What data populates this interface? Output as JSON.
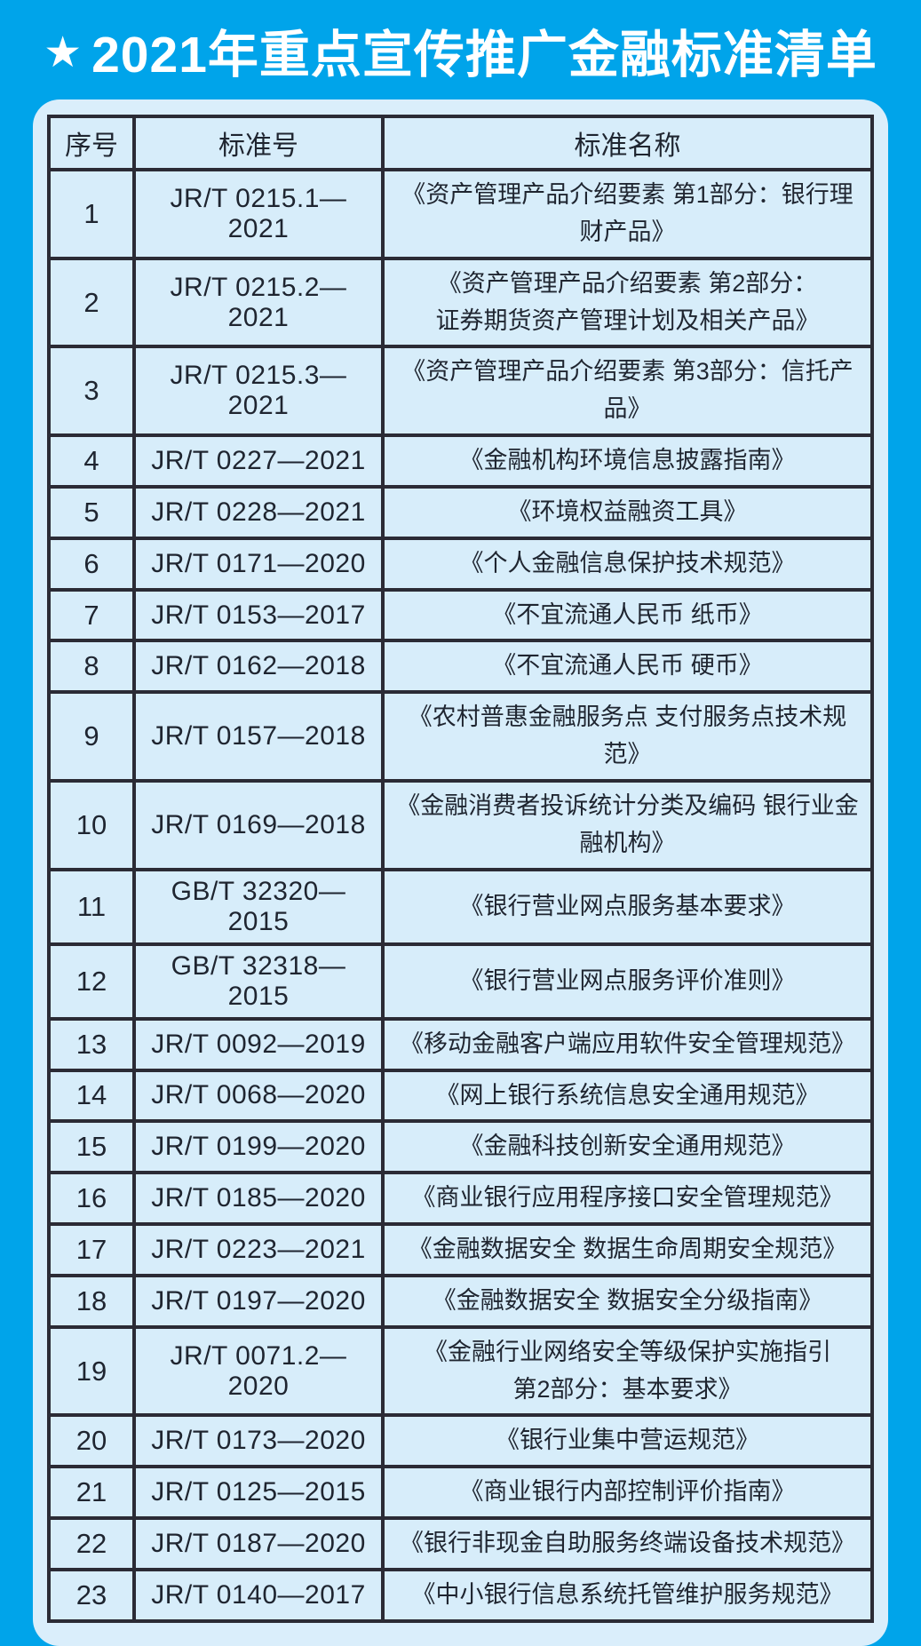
{
  "header": {
    "star_icon": "★",
    "title": "2021年重点宣传推广金融标准清单"
  },
  "colors": {
    "background": "#00a4ea",
    "panel": "#daeefb",
    "cell": "#d7edfa",
    "border": "#2b2b35",
    "cell_text": "#1f2530",
    "title_text": "#ffffff"
  },
  "table": {
    "headers": [
      "序号",
      "标准号",
      "标准名称"
    ],
    "rows": [
      {
        "no": "1",
        "code": "JR/T 0215.1—2021",
        "name": "《资产管理产品介绍要素 第1部分：银行理财产品》"
      },
      {
        "no": "2",
        "code": "JR/T 0215.2—2021",
        "name": "《资产管理产品介绍要素 第2部分：\n证券期货资产管理计划及相关产品》"
      },
      {
        "no": "3",
        "code": "JR/T 0215.3—2021",
        "name": "《资产管理产品介绍要素 第3部分：信托产品》"
      },
      {
        "no": "4",
        "code": "JR/T 0227—2021",
        "name": "《金融机构环境信息披露指南》"
      },
      {
        "no": "5",
        "code": "JR/T 0228—2021",
        "name": "《环境权益融资工具》"
      },
      {
        "no": "6",
        "code": "JR/T 0171—2020",
        "name": "《个人金融信息保护技术规范》"
      },
      {
        "no": "7",
        "code": "JR/T 0153—2017",
        "name": "《不宜流通人民币 纸币》"
      },
      {
        "no": "8",
        "code": "JR/T 0162—2018",
        "name": "《不宜流通人民币 硬币》"
      },
      {
        "no": "9",
        "code": "JR/T 0157—2018",
        "name": "《农村普惠金融服务点 支付服务点技术规范》"
      },
      {
        "no": "10",
        "code": "JR/T 0169—2018",
        "name": "《金融消费者投诉统计分类及编码 银行业金融机构》"
      },
      {
        "no": "11",
        "code": "GB/T 32320—2015",
        "name": "《银行营业网点服务基本要求》"
      },
      {
        "no": "12",
        "code": "GB/T 32318—2015",
        "name": "《银行营业网点服务评价准则》"
      },
      {
        "no": "13",
        "code": "JR/T 0092—2019",
        "name": "《移动金融客户端应用软件安全管理规范》"
      },
      {
        "no": "14",
        "code": "JR/T 0068—2020",
        "name": "《网上银行系统信息安全通用规范》"
      },
      {
        "no": "15",
        "code": "JR/T 0199—2020",
        "name": "《金融科技创新安全通用规范》"
      },
      {
        "no": "16",
        "code": "JR/T 0185—2020",
        "name": "《商业银行应用程序接口安全管理规范》"
      },
      {
        "no": "17",
        "code": "JR/T 0223—2021",
        "name": "《金融数据安全 数据生命周期安全规范》"
      },
      {
        "no": "18",
        "code": "JR/T 0197—2020",
        "name": "《金融数据安全 数据安全分级指南》"
      },
      {
        "no": "19",
        "code": "JR/T 0071.2—2020",
        "name": "《金融行业网络安全等级保护实施指引\n第2部分：基本要求》"
      },
      {
        "no": "20",
        "code": "JR/T 0173—2020",
        "name": "《银行业集中营运规范》"
      },
      {
        "no": "21",
        "code": "JR/T 0125—2015",
        "name": "《商业银行内部控制评价指南》"
      },
      {
        "no": "22",
        "code": "JR/T 0187—2020",
        "name": "《银行非现金自助服务终端设备技术规范》"
      },
      {
        "no": "23",
        "code": "JR/T 0140—2017",
        "name": "《中小银行信息系统托管维护服务规范》"
      }
    ]
  }
}
